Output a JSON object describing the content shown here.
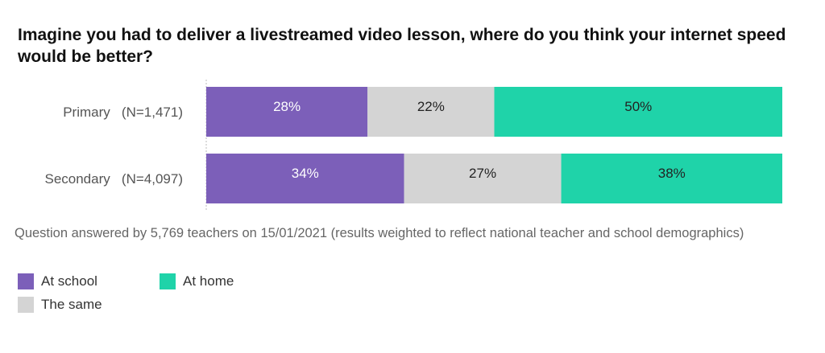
{
  "chart_data": {
    "type": "bar",
    "orientation": "horizontal",
    "stacked": true,
    "percent_stacked": true,
    "title": "Imagine you had to deliver a livestreamed video lesson, where do you think your internet speed would be better?",
    "categories": [
      "Primary   (N=1,471)",
      "Secondary   (N=4,097)"
    ],
    "series": [
      {
        "name": "At school",
        "color": "#7c5fb9",
        "values": [
          28,
          34
        ],
        "labels": [
          "28%",
          "34%"
        ],
        "label_color": "#ffffff"
      },
      {
        "name": "The same",
        "color": "#d4d4d4",
        "values": [
          22,
          27
        ],
        "labels": [
          "22%",
          "27%"
        ],
        "label_color": "#222222"
      },
      {
        "name": "At home",
        "color": "#1fd3a9",
        "values": [
          50,
          38
        ],
        "labels": [
          "50%",
          "38%"
        ],
        "label_color": "#222222"
      }
    ],
    "xlim": [
      0,
      100
    ],
    "grid": false,
    "legend_position": "bottom-left"
  },
  "caption": "Question answered by 5,769 teachers on 15/01/2021 (results weighted to reflect national teacher and school demographics)"
}
